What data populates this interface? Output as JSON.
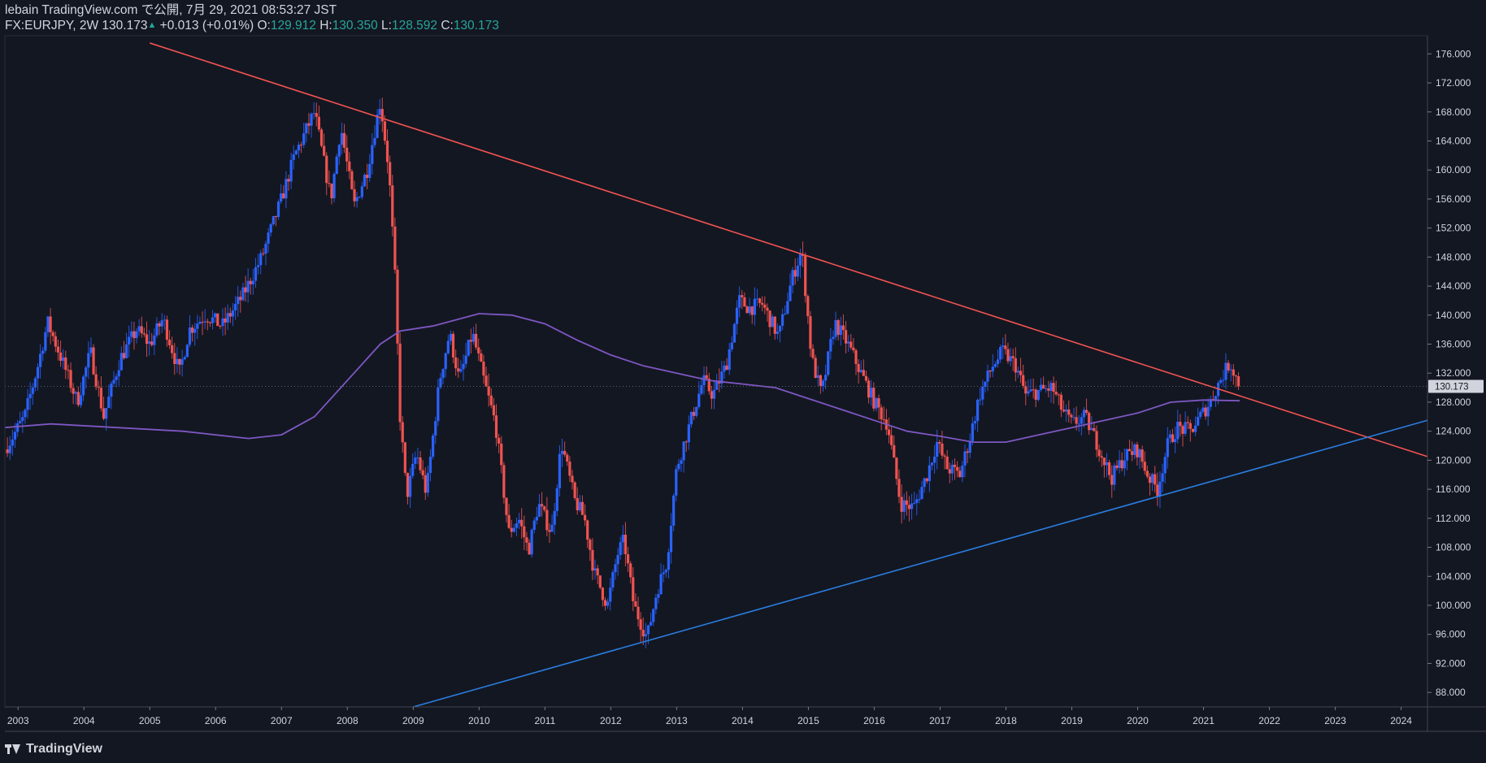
{
  "header": {
    "line1": "lebain TradingView.com で公開, 7月 29, 2021 08:53:27 JST",
    "symbol": "FX:EURJPY, 2W 130.173",
    "change_arrow": "▲",
    "change": "+0.013 (+0.01%)",
    "o_label": "O:",
    "o_value": "129.912",
    "h_label": "H:",
    "h_value": "130.350",
    "l_label": "L:",
    "l_value": "128.592",
    "c_label": "C:",
    "c_value": "130.173"
  },
  "footer": {
    "brand": "TradingView",
    "logo_icon": "tradingview-logo-icon"
  },
  "colors": {
    "background": "#131722",
    "up": "#2962ff",
    "down": "#ef5350",
    "ma": "#7e57c2",
    "resistance": "#f05350",
    "support": "#2a7ee0",
    "text": "#d1d4dc",
    "grid_axis": "#2a2e39",
    "price_tag": "#d1d4dc"
  },
  "chart_data": {
    "type": "candlestick",
    "symbol": "FX:EURJPY",
    "timeframe": "2W",
    "current_price": 130.173,
    "current_price_label": "130.173",
    "x_range": [
      2002.8,
      2024.4
    ],
    "y_range": [
      86.0,
      178.5
    ],
    "x_ticks": [
      "2003",
      "2004",
      "2005",
      "2006",
      "2007",
      "2008",
      "2009",
      "2010",
      "2011",
      "2012",
      "2013",
      "2014",
      "2015",
      "2016",
      "2017",
      "2018",
      "2019",
      "2020",
      "2021",
      "2022",
      "2023",
      "2024"
    ],
    "y_ticks": [
      "88.000",
      "92.000",
      "96.000",
      "100.000",
      "104.000",
      "108.000",
      "112.000",
      "116.000",
      "120.000",
      "124.000",
      "128.000",
      "132.000",
      "136.000",
      "140.000",
      "144.000",
      "148.000",
      "152.000",
      "156.000",
      "160.000",
      "164.000",
      "168.000",
      "172.000",
      "176.000"
    ],
    "grid": false,
    "price_path": [
      [
        2002.8,
        121.5
      ],
      [
        2003.1,
        126.0
      ],
      [
        2003.3,
        133.0
      ],
      [
        2003.45,
        139.0
      ],
      [
        2003.7,
        133.0
      ],
      [
        2003.9,
        128.0
      ],
      [
        2004.1,
        135.0
      ],
      [
        2004.3,
        126.0
      ],
      [
        2004.55,
        134.0
      ],
      [
        2004.8,
        138.0
      ],
      [
        2005.0,
        136.0
      ],
      [
        2005.2,
        139.5
      ],
      [
        2005.45,
        132.0
      ],
      [
        2005.6,
        138.0
      ],
      [
        2005.85,
        140.0
      ],
      [
        2006.1,
        138.5
      ],
      [
        2006.4,
        142.5
      ],
      [
        2006.7,
        148.0
      ],
      [
        2007.0,
        156.0
      ],
      [
        2007.2,
        162.0
      ],
      [
        2007.5,
        168.0
      ],
      [
        2007.75,
        156.0
      ],
      [
        2007.9,
        166.0
      ],
      [
        2008.1,
        155.0
      ],
      [
        2008.3,
        160.0
      ],
      [
        2008.5,
        169.5
      ],
      [
        2008.63,
        160.0
      ],
      [
        2008.72,
        146.0
      ],
      [
        2008.8,
        126.0
      ],
      [
        2008.9,
        115.0
      ],
      [
        2009.05,
        121.0
      ],
      [
        2009.2,
        115.5
      ],
      [
        2009.4,
        131.0
      ],
      [
        2009.55,
        137.5
      ],
      [
        2009.7,
        131.0
      ],
      [
        2009.9,
        137.5
      ],
      [
        2010.1,
        130.0
      ],
      [
        2010.25,
        125.0
      ],
      [
        2010.45,
        110.0
      ],
      [
        2010.6,
        112.0
      ],
      [
        2010.75,
        107.5
      ],
      [
        2010.9,
        114.0
      ],
      [
        2011.1,
        110.0
      ],
      [
        2011.25,
        122.5
      ],
      [
        2011.45,
        114.5
      ],
      [
        2011.6,
        112.0
      ],
      [
        2011.75,
        104.5
      ],
      [
        2011.95,
        100.0
      ],
      [
        2012.1,
        107.0
      ],
      [
        2012.2,
        109.0
      ],
      [
        2012.35,
        100.0
      ],
      [
        2012.55,
        95.5
      ],
      [
        2012.7,
        102.0
      ],
      [
        2012.85,
        106.0
      ],
      [
        2013.0,
        119.0
      ],
      [
        2013.2,
        125.0
      ],
      [
        2013.4,
        131.0
      ],
      [
        2013.55,
        129.0
      ],
      [
        2013.75,
        133.0
      ],
      [
        2013.95,
        142.0
      ],
      [
        2014.1,
        141.0
      ],
      [
        2014.3,
        141.5
      ],
      [
        2014.55,
        137.0
      ],
      [
        2014.75,
        145.0
      ],
      [
        2014.9,
        149.0
      ],
      [
        2015.05,
        134.0
      ],
      [
        2015.2,
        129.0
      ],
      [
        2015.4,
        139.0
      ],
      [
        2015.6,
        136.0
      ],
      [
        2015.8,
        132.0
      ],
      [
        2016.0,
        128.0
      ],
      [
        2016.2,
        125.0
      ],
      [
        2016.4,
        114.0
      ],
      [
        2016.6,
        113.5
      ],
      [
        2016.8,
        118.0
      ],
      [
        2016.95,
        122.5
      ],
      [
        2017.1,
        119.0
      ],
      [
        2017.3,
        118.0
      ],
      [
        2017.45,
        123.0
      ],
      [
        2017.6,
        129.0
      ],
      [
        2017.8,
        133.0
      ],
      [
        2017.95,
        135.0
      ],
      [
        2018.15,
        133.0
      ],
      [
        2018.3,
        129.0
      ],
      [
        2018.5,
        129.5
      ],
      [
        2018.7,
        130.0
      ],
      [
        2018.85,
        127.0
      ],
      [
        2019.0,
        125.0
      ],
      [
        2019.2,
        126.0
      ],
      [
        2019.4,
        122.0
      ],
      [
        2019.6,
        117.5
      ],
      [
        2019.8,
        120.5
      ],
      [
        2020.0,
        121.5
      ],
      [
        2020.15,
        118.0
      ],
      [
        2020.3,
        116.0
      ],
      [
        2020.45,
        122.0
      ],
      [
        2020.6,
        124.5
      ],
      [
        2020.8,
        124.0
      ],
      [
        2020.95,
        126.0
      ],
      [
        2021.1,
        128.0
      ],
      [
        2021.25,
        131.0
      ],
      [
        2021.4,
        133.5
      ],
      [
        2021.55,
        130.173
      ]
    ],
    "moving_average": [
      [
        2002.8,
        124.5
      ],
      [
        2003.5,
        125.0
      ],
      [
        2004.5,
        124.5
      ],
      [
        2005.5,
        124.0
      ],
      [
        2006.5,
        123.0
      ],
      [
        2007.0,
        123.5
      ],
      [
        2007.5,
        126.0
      ],
      [
        2008.0,
        131.0
      ],
      [
        2008.5,
        136.0
      ],
      [
        2008.8,
        137.8
      ],
      [
        2009.3,
        138.5
      ],
      [
        2010.0,
        140.2
      ],
      [
        2010.5,
        140.0
      ],
      [
        2011.0,
        138.8
      ],
      [
        2011.5,
        136.5
      ],
      [
        2012.0,
        134.5
      ],
      [
        2012.5,
        133.0
      ],
      [
        2013.0,
        132.0
      ],
      [
        2013.5,
        131.0
      ],
      [
        2014.0,
        130.5
      ],
      [
        2014.5,
        130.0
      ],
      [
        2015.0,
        128.5
      ],
      [
        2015.5,
        127.0
      ],
      [
        2016.0,
        125.5
      ],
      [
        2016.5,
        124.0
      ],
      [
        2017.0,
        123.3
      ],
      [
        2017.5,
        122.5
      ],
      [
        2018.0,
        122.5
      ],
      [
        2018.5,
        123.5
      ],
      [
        2019.0,
        124.5
      ],
      [
        2019.5,
        125.5
      ],
      [
        2020.0,
        126.5
      ],
      [
        2020.5,
        128.0
      ],
      [
        2021.0,
        128.3
      ],
      [
        2021.55,
        128.2
      ]
    ],
    "trendlines": [
      {
        "role": "resistance",
        "from": [
          2005.0,
          177.5
        ],
        "to": [
          2024.4,
          120.5
        ]
      },
      {
        "role": "support",
        "from": [
          2009.0,
          86.0
        ],
        "to": [
          2024.4,
          125.5
        ]
      }
    ]
  }
}
